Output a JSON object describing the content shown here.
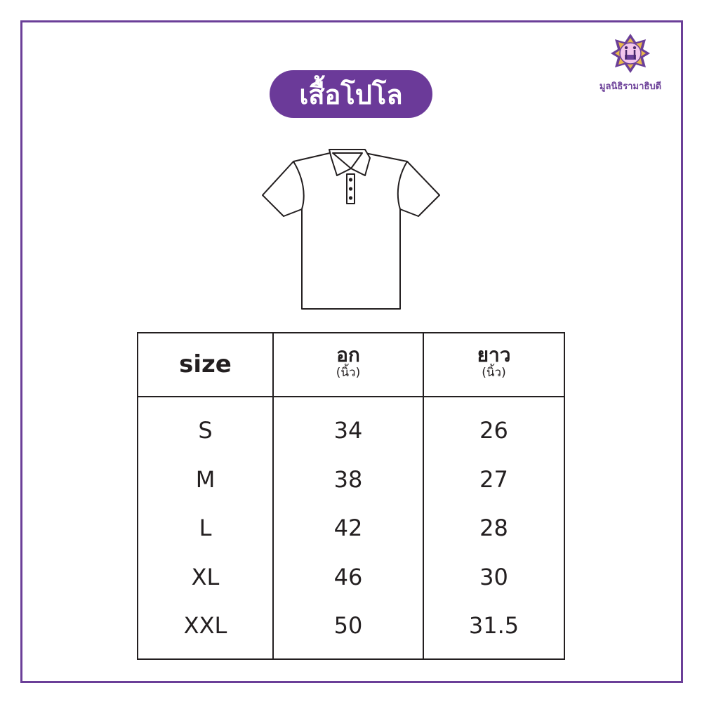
{
  "brand": {
    "name": "มูลนิธิรามาธิบดี",
    "color": "#6b3f98"
  },
  "title": "เสื้อโปโล",
  "table": {
    "headers": [
      {
        "label": "size",
        "unit": ""
      },
      {
        "label": "อก",
        "unit": "(นิ้ว)"
      },
      {
        "label": "ยาว",
        "unit": "(นิ้ว)"
      }
    ],
    "rows": [
      {
        "size": "S",
        "chest": "34",
        "length": "26"
      },
      {
        "size": "M",
        "chest": "38",
        "length": "27"
      },
      {
        "size": "L",
        "chest": "42",
        "length": "28"
      },
      {
        "size": "XL",
        "chest": "46",
        "length": "30"
      },
      {
        "size": "XXL",
        "chest": "50",
        "length": "31.5"
      }
    ]
  }
}
